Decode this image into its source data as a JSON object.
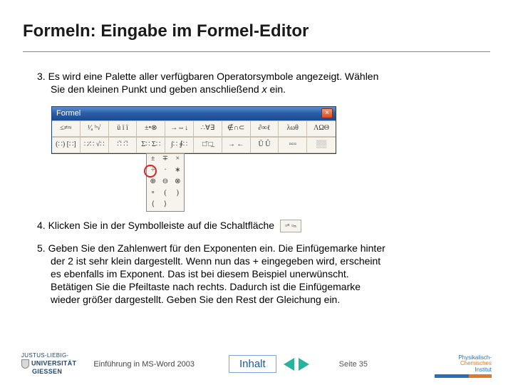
{
  "title": "Formeln: Eingabe im Formel-Editor",
  "steps": {
    "s3": {
      "num": "3.",
      "line1": "Es wird eine Palette aller verfügbaren Operatorsymbole angezeigt. Wählen",
      "line2": "Sie den kleinen Punkt und geben anschließend ",
      "var": "x",
      "line2b": " ein."
    },
    "s4": {
      "num": "4.",
      "text": "Klicken Sie in der Symbolleiste auf die Schaltfläche"
    },
    "s5": {
      "num": "5.",
      "l1": "Geben Sie den Zahlenwert für den Exponenten ein. Die Einfügemarke hinter",
      "l2": "der 2 ist sehr klein dargestellt. Wenn nun das + eingegeben wird, erscheint",
      "l3": "es ebenfalls im Exponent. Das ist bei diesem Beispiel unerwünscht.",
      "l4": "Betätigen Sie die Pfeiltaste nach rechts. Dadurch ist die Einfügemarke",
      "l5": "wieder größer dargestellt. Geben Sie den Rest der Gleichung ein."
    }
  },
  "formel_window": {
    "title": "Formel",
    "row1": [
      "≤≠≈",
      "¹⁄ₐ ᵇ√",
      "ü ï ï",
      "±•⊗",
      "→⇔↓",
      "∴∀∃",
      "∉∩⊂",
      "∂∞ℓ",
      "λωθ",
      "ΛΩΘ"
    ],
    "row2": [
      "(∷) [∷]",
      "∷⁄∷ √∷",
      "∷̈ ∷̈",
      "Σ∷ Σ∷",
      "∫∷ ∮∷",
      "□̄ □̲",
      "→ ←",
      "Ū Û",
      "▫▫▫",
      "░░"
    ],
    "dropdown": [
      [
        "±",
        "∓",
        "×"
      ],
      [
        "÷",
        "·",
        "∗"
      ],
      [
        "⊕",
        "⊖",
        "⊗"
      ],
      [
        "∘",
        "(",
        ")"
      ],
      [
        "⟨",
        "⟩",
        ""
      ]
    ],
    "highlight_target": "·"
  },
  "inline_button_label": "▫ⁿ ▫ₙ",
  "footer": {
    "uni_line1": "JUSTUS-LIEBIG-",
    "uni_line2": "UNIVERSITÄT",
    "uni_line3": "GIESSEN",
    "course": "Einführung in MS-Word 2003",
    "inhalt": "Inhalt",
    "page": "Seite 35",
    "pci1": "Physikalisch-",
    "pci2": "Chemisches",
    "pci3": "Institut"
  },
  "colors": {
    "title_color": "#1a1a1a",
    "hr_color": "#888888",
    "titlebar_grad_top": "#5a8fd6",
    "titlebar_grad_bot": "#1a4a8f",
    "close_btn": "#d84a1f",
    "highlight_ring": "#e02020",
    "inhalt_border": "#7aa7d8",
    "inhalt_text": "#1a5aa8",
    "arrow_color": "#28b49a",
    "pci_blue": "#2a6fb5",
    "pci_orange": "#e07a2a"
  }
}
